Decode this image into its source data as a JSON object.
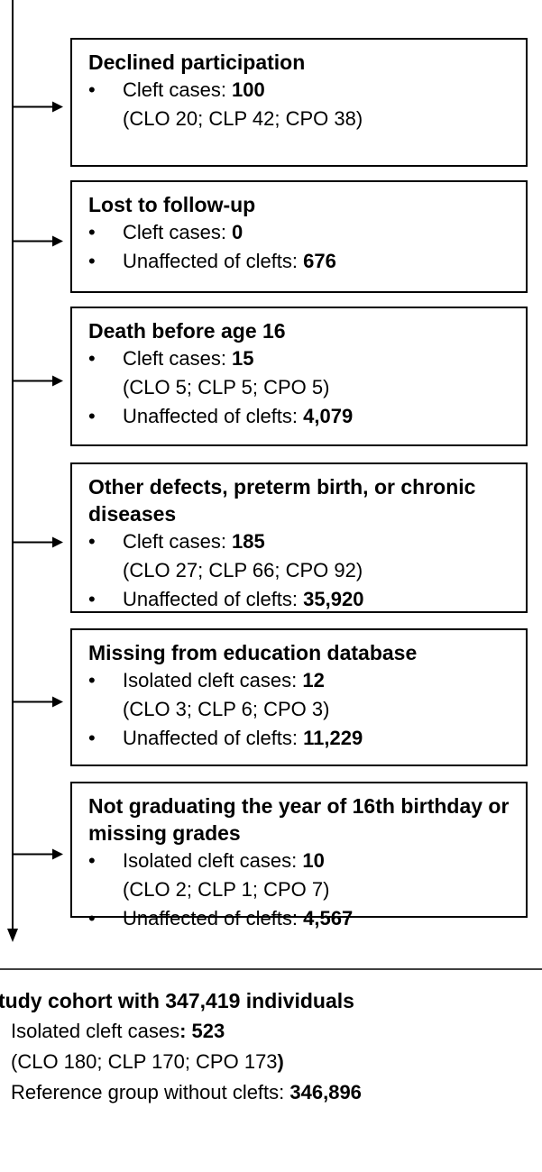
{
  "boxes": [
    {
      "title": "Declined participation",
      "items": [
        {
          "label": "Cleft cases: ",
          "value": "100",
          "detail": "(CLO 20; CLP 42; CPO 38)"
        }
      ]
    },
    {
      "title": "Lost to follow-up",
      "items": [
        {
          "label": "Cleft cases: ",
          "value": "0"
        },
        {
          "label": "Unaffected of clefts: ",
          "value": "676"
        }
      ]
    },
    {
      "title": "Death before age 16",
      "items": [
        {
          "label": "Cleft cases: ",
          "value": "15",
          "detail": "(CLO 5; CLP 5; CPO 5)"
        },
        {
          "label": "Unaffected of clefts: ",
          "value": "4,079"
        }
      ]
    },
    {
      "title": "Other defects, preterm birth, or chronic diseases",
      "items": [
        {
          "label": "Cleft cases: ",
          "value": "185",
          "detail": "(CLO 27; CLP 66; CPO 92)"
        },
        {
          "label": "Unaffected of clefts: ",
          "value": "35,920"
        }
      ]
    },
    {
      "title": "Missing from education database",
      "items": [
        {
          "label": "Isolated cleft cases: ",
          "value": "12",
          "detail": "(CLO 3; CLP 6; CPO 3)"
        },
        {
          "label": "Unaffected of clefts: ",
          "value": "11,229"
        }
      ]
    },
    {
      "title": "Not graduating the year of 16th birthday or missing grades",
      "items": [
        {
          "label": "Isolated cleft cases: ",
          "value": "10",
          "detail": "(CLO 2; CLP 1; CPO 7)"
        },
        {
          "label": "Unaffected of clefts: ",
          "value": "4,567"
        }
      ]
    }
  ],
  "cohort": {
    "title": "tudy cohort with 347,419 individuals",
    "lines": [
      {
        "label": "Isolated cleft cases",
        "value": ": 523"
      },
      {
        "label": "(CLO 180; CLP 170; CPO 173",
        "value": ")"
      },
      {
        "label": "Reference group without clefts: ",
        "value": "346,896"
      }
    ]
  }
}
